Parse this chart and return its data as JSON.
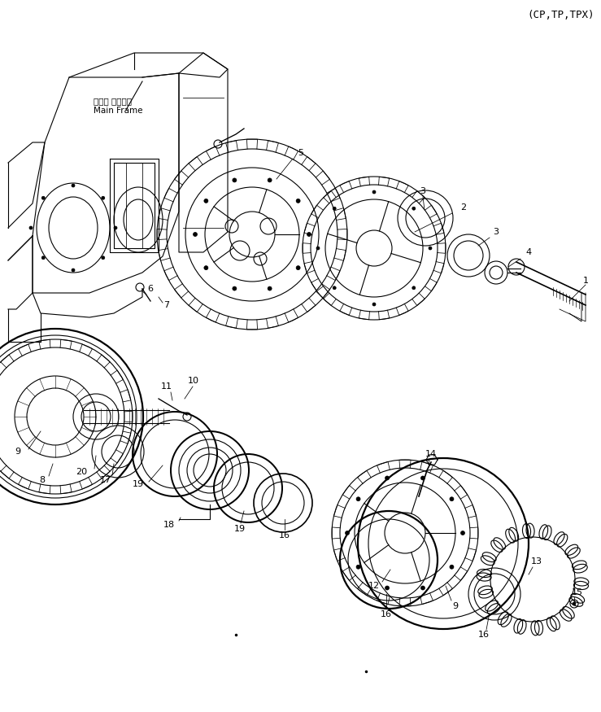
{
  "title": "(CP,TP,TPX)",
  "bg_color": "#ffffff",
  "line_color": "#000000",
  "lw": 0.8,
  "fig_w": 7.39,
  "fig_h": 8.75,
  "dpi": 100,
  "label_fs": 8
}
